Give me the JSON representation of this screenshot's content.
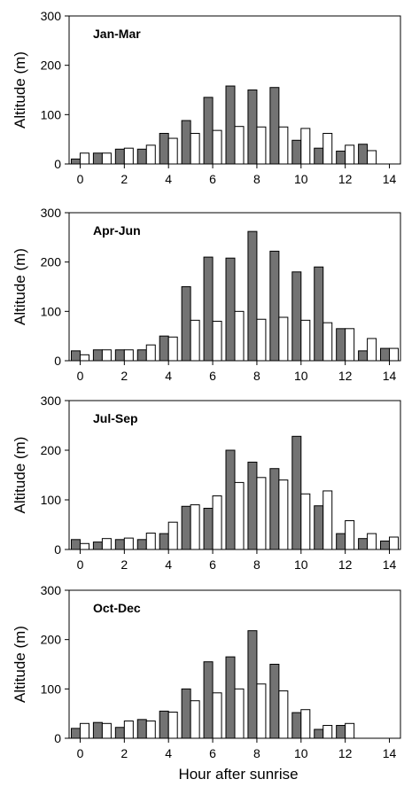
{
  "chart_data": [
    {
      "type": "bar",
      "title": "Jan-Mar",
      "ylabel": "Altitude (m)",
      "xlabel": "",
      "ylim": [
        0,
        300
      ],
      "yticks": [
        0,
        100,
        200,
        300
      ],
      "xlim": [
        -0.5,
        14.5
      ],
      "xticks": [
        0,
        2,
        4,
        6,
        8,
        10,
        12,
        14
      ],
      "x": [
        0,
        1,
        2,
        3,
        4,
        5,
        6,
        7,
        8,
        9,
        10,
        11,
        12,
        13
      ],
      "series": [
        {
          "color": "#737373",
          "values": [
            10,
            22,
            30,
            30,
            62,
            88,
            135,
            158,
            150,
            155,
            48,
            32,
            26,
            40
          ]
        },
        {
          "color": "#ffffff",
          "values": [
            22,
            22,
            32,
            38,
            52,
            62,
            68,
            76,
            75,
            75,
            72,
            62,
            38,
            27
          ]
        }
      ]
    },
    {
      "type": "bar",
      "title": "Apr-Jun",
      "ylabel": "Altitude (m)",
      "xlabel": "",
      "ylim": [
        0,
        300
      ],
      "yticks": [
        0,
        100,
        200,
        300
      ],
      "xlim": [
        -0.5,
        14.5
      ],
      "xticks": [
        0,
        2,
        4,
        6,
        8,
        10,
        12,
        14
      ],
      "x": [
        0,
        1,
        2,
        3,
        4,
        5,
        6,
        7,
        8,
        9,
        10,
        11,
        12,
        13,
        14
      ],
      "series": [
        {
          "color": "#737373",
          "values": [
            20,
            22,
            22,
            22,
            50,
            150,
            210,
            208,
            262,
            222,
            180,
            190,
            65,
            20,
            25
          ]
        },
        {
          "color": "#ffffff",
          "values": [
            12,
            22,
            22,
            32,
            48,
            82,
            80,
            100,
            84,
            88,
            82,
            77,
            65,
            45,
            25
          ]
        }
      ]
    },
    {
      "type": "bar",
      "title": "Jul-Sep",
      "ylabel": "Altitude (m)",
      "xlabel": "",
      "ylim": [
        0,
        300
      ],
      "yticks": [
        0,
        100,
        200,
        300
      ],
      "xlim": [
        -0.5,
        14.5
      ],
      "xticks": [
        0,
        2,
        4,
        6,
        8,
        10,
        12,
        14
      ],
      "x": [
        0,
        1,
        2,
        3,
        4,
        5,
        6,
        7,
        8,
        9,
        10,
        11,
        12,
        13,
        14
      ],
      "series": [
        {
          "color": "#737373",
          "values": [
            20,
            15,
            20,
            20,
            32,
            87,
            83,
            200,
            176,
            163,
            228,
            88,
            32,
            22,
            17
          ]
        },
        {
          "color": "#ffffff",
          "values": [
            12,
            22,
            23,
            33,
            55,
            90,
            108,
            135,
            145,
            140,
            112,
            118,
            58,
            32,
            25
          ]
        }
      ]
    },
    {
      "type": "bar",
      "title": "Oct-Dec",
      "ylabel": "Altitude (m)",
      "xlabel": "Hour after sunrise",
      "ylim": [
        0,
        300
      ],
      "yticks": [
        0,
        100,
        200,
        300
      ],
      "xlim": [
        -0.5,
        14.5
      ],
      "xticks": [
        0,
        2,
        4,
        6,
        8,
        10,
        12,
        14
      ],
      "x": [
        0,
        1,
        2,
        3,
        4,
        5,
        6,
        7,
        8,
        9,
        10,
        11,
        12
      ],
      "series": [
        {
          "color": "#737373",
          "values": [
            20,
            32,
            22,
            38,
            55,
            100,
            155,
            165,
            218,
            150,
            52,
            18,
            26
          ]
        },
        {
          "color": "#ffffff",
          "values": [
            30,
            30,
            35,
            35,
            53,
            76,
            92,
            100,
            110,
            96,
            58,
            26,
            30
          ]
        }
      ]
    }
  ]
}
